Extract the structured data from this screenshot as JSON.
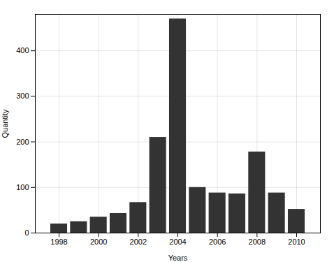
{
  "chart_data": {
    "type": "bar",
    "x": [
      1998,
      1999,
      2000,
      2001,
      2002,
      2003,
      2004,
      2005,
      2006,
      2007,
      2008,
      2009,
      2010
    ],
    "values": [
      20,
      25,
      35,
      43,
      67,
      210,
      470,
      100,
      88,
      86,
      178,
      88,
      52
    ],
    "color": "#333333",
    "xlabel": "Years",
    "ylabel": "Quantity",
    "xlim": [
      1996.8,
      2011.2
    ],
    "xticks": [
      1998,
      2000,
      2002,
      2004,
      2006,
      2008,
      2010
    ],
    "ylim": [
      0,
      480
    ],
    "yticks": [
      0,
      100,
      200,
      300,
      400
    ],
    "grid": true
  }
}
